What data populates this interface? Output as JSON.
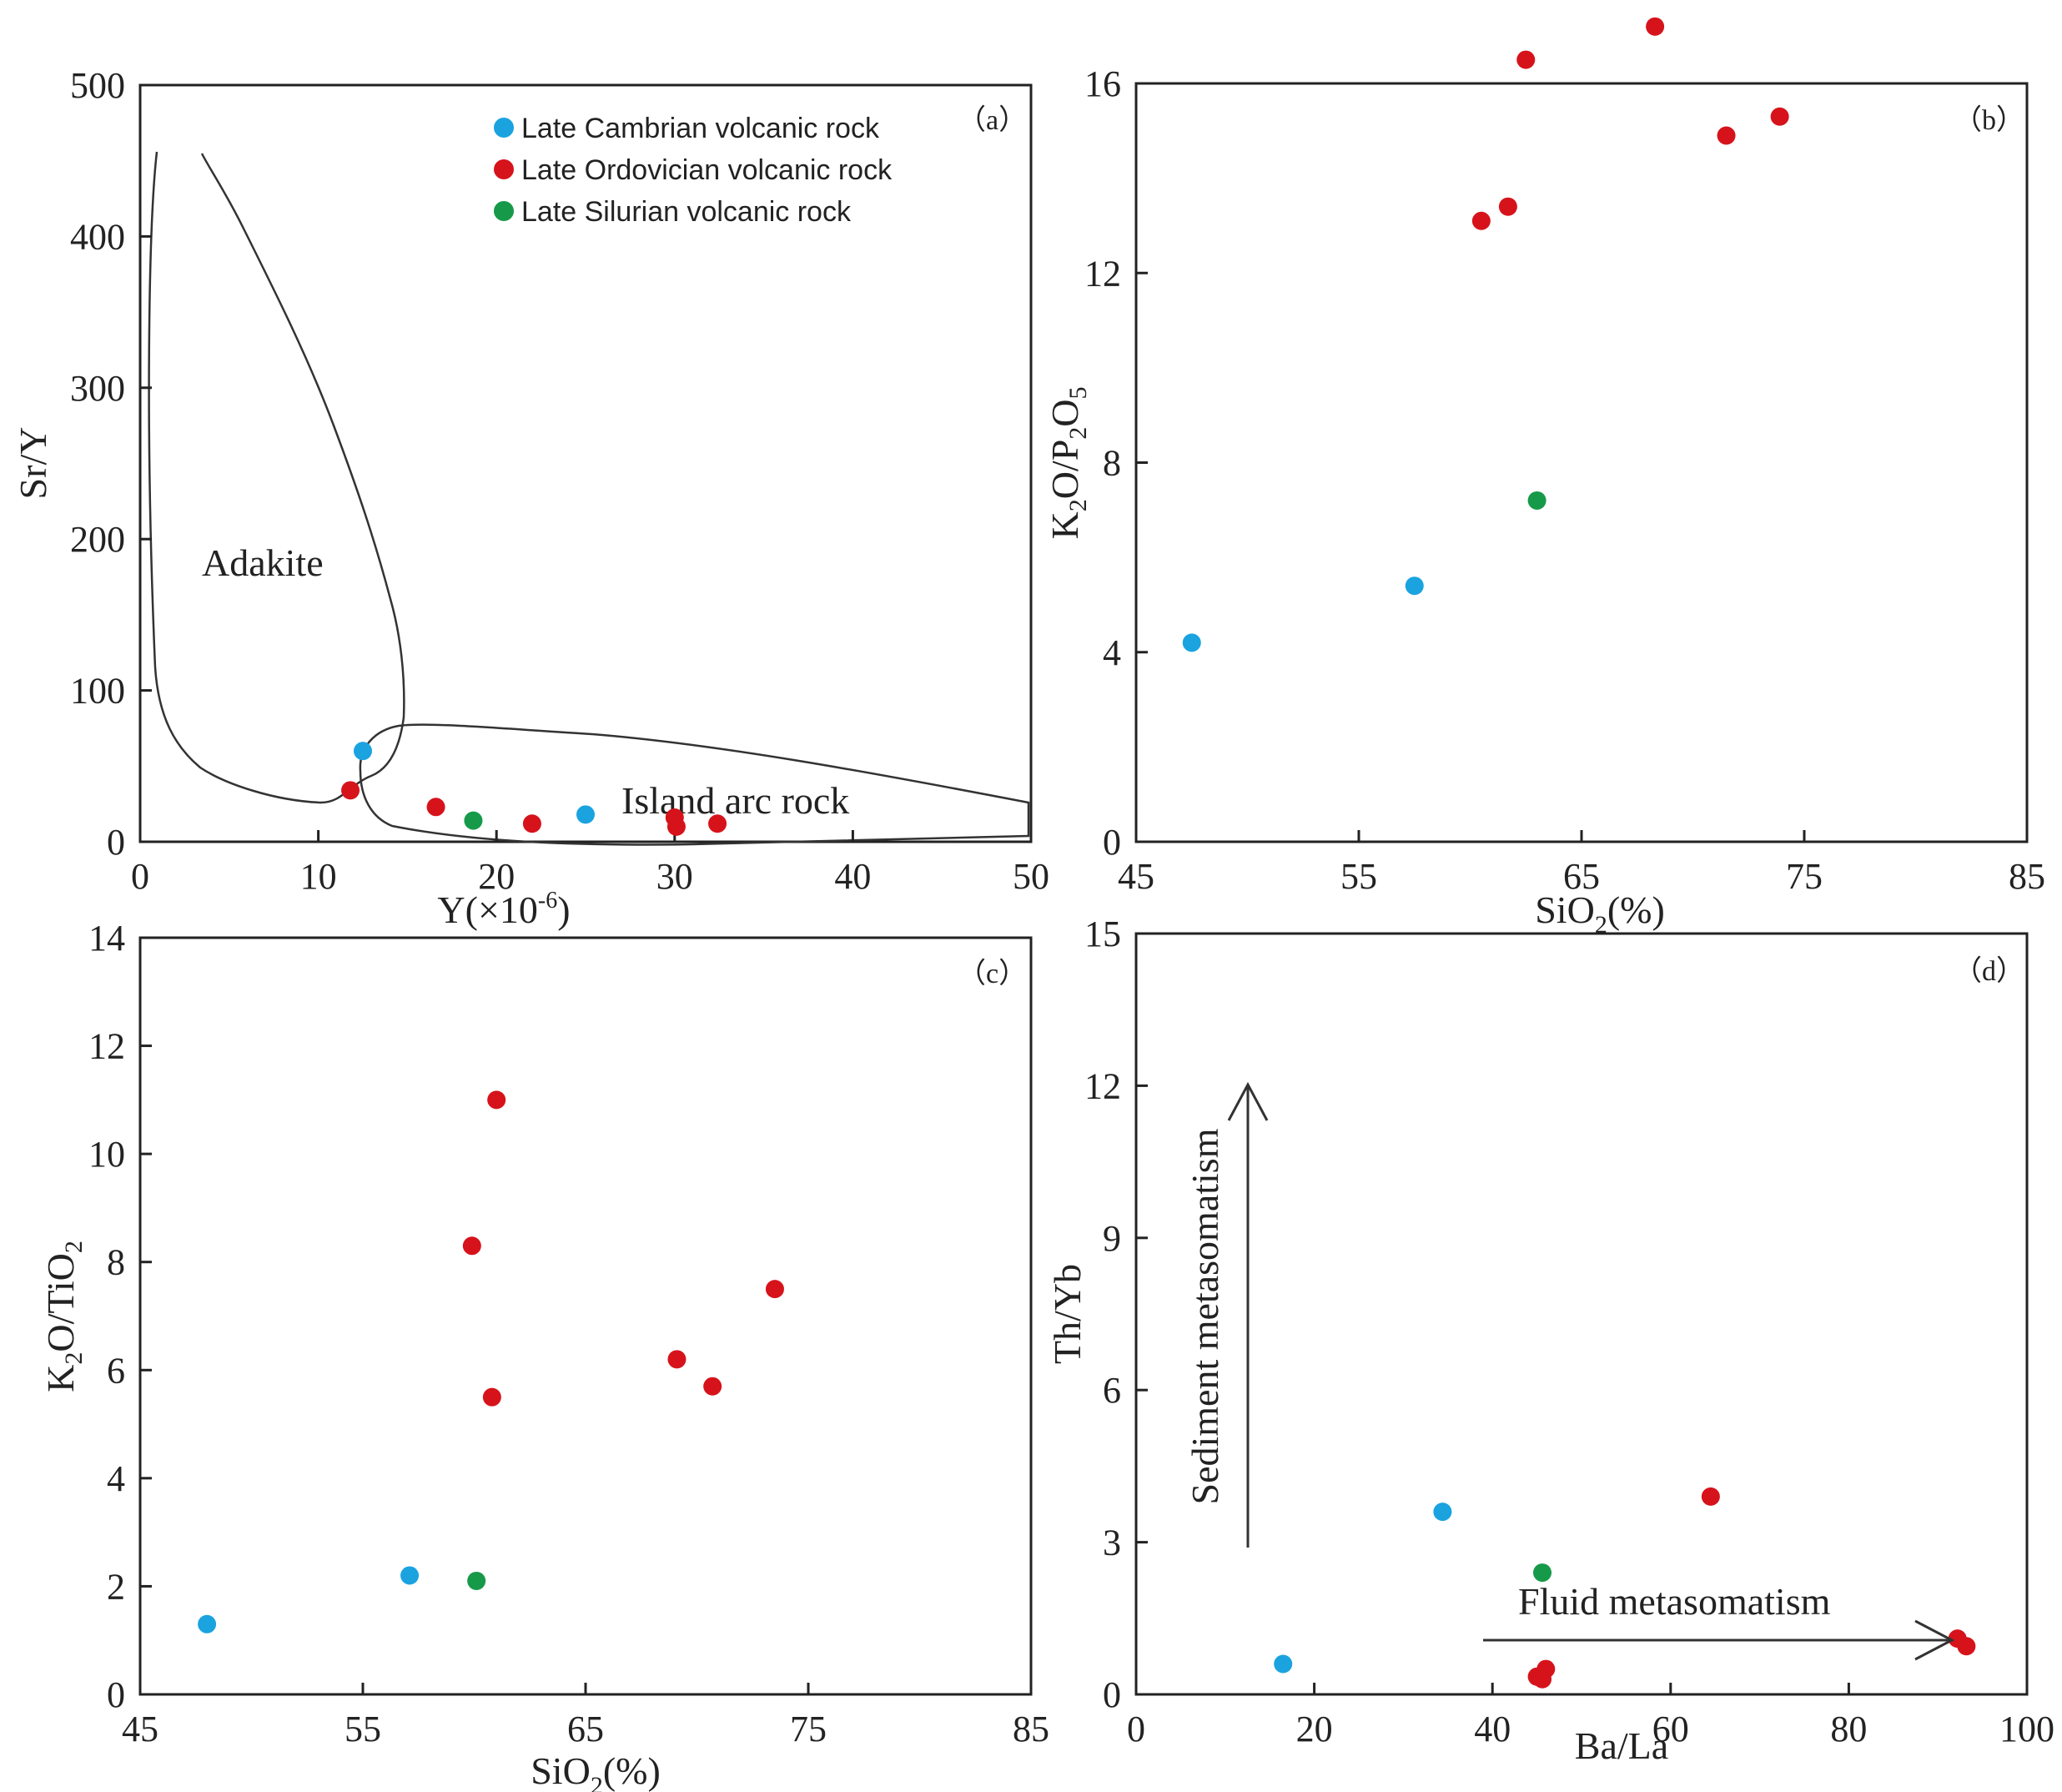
{
  "colors": {
    "cambrian": "#1aa3df",
    "ordovician": "#d6131b",
    "silurian": "#169a49"
  },
  "legend": [
    {
      "key": "cambrian",
      "label": "Late Cambrian volcanic rock"
    },
    {
      "key": "ordovician",
      "label": "Late Ordovician volcanic rock"
    },
    {
      "key": "silurian",
      "label": "Late Silurian volcanic rock"
    }
  ],
  "chart_data": [
    {
      "id": "a",
      "panel_label": "（a）",
      "type": "scatter",
      "xlabel": "Y(×10",
      "xlabel_sup": "-6",
      "xlabel_suffix": ")",
      "ylabel": "Sr/Y",
      "xlim": [
        0,
        50
      ],
      "ylim": [
        0,
        500
      ],
      "xticks": [
        0,
        10,
        20,
        30,
        40,
        50
      ],
      "yticks": [
        0,
        100,
        200,
        300,
        400,
        500
      ],
      "regions": [
        {
          "name": "Adakite",
          "label": "Adakite"
        },
        {
          "name": "Island arc rock",
          "label": "Island arc rock"
        }
      ],
      "series": [
        {
          "key": "cambrian",
          "x": [
            12.5,
            25
          ],
          "y": [
            60,
            18
          ]
        },
        {
          "key": "ordovician",
          "x": [
            11.8,
            16.6,
            22,
            30,
            30.1,
            32.4
          ],
          "y": [
            34,
            23,
            12,
            16,
            10,
            12
          ]
        },
        {
          "key": "silurian",
          "x": [
            18.7
          ],
          "y": [
            14
          ]
        }
      ]
    },
    {
      "id": "b",
      "panel_label": "（b）",
      "type": "scatter",
      "xlabel": "SiO",
      "xlabel_sub": "2",
      "xlabel_suffix": "(%)",
      "ylabel": "K2O/P2O5",
      "xlim": [
        45,
        85
      ],
      "ylim": [
        0,
        16
      ],
      "xticks": [
        45,
        55,
        65,
        75,
        85
      ],
      "yticks": [
        0,
        4,
        8,
        12,
        16
      ],
      "series": [
        {
          "key": "cambrian",
          "x": [
            47.5,
            57.5
          ],
          "y": [
            4.2,
            5.4
          ]
        },
        {
          "key": "ordovician",
          "x": [
            60.5,
            61.7,
            62.5,
            68.3,
            71.5,
            73.9
          ],
          "y": [
            13.1,
            13.4,
            16.5,
            17.2,
            14.9,
            15.3
          ]
        },
        {
          "key": "silurian",
          "x": [
            63
          ],
          "y": [
            7.2
          ]
        }
      ]
    },
    {
      "id": "c",
      "panel_label": "（c）",
      "type": "scatter",
      "xlabel": "SiO",
      "xlabel_sub": "2",
      "xlabel_suffix": "(%)",
      "ylabel": "K2O/TiO2",
      "xlim": [
        45,
        85
      ],
      "ylim": [
        0,
        14
      ],
      "xticks": [
        45,
        55,
        65,
        75,
        85
      ],
      "yticks": [
        0,
        2,
        4,
        6,
        8,
        10,
        12,
        14
      ],
      "series": [
        {
          "key": "cambrian",
          "x": [
            48,
            57.1
          ],
          "y": [
            1.3,
            2.2
          ]
        },
        {
          "key": "ordovician",
          "x": [
            59.9,
            60.8,
            61,
            69.1,
            70.7,
            73.5
          ],
          "y": [
            8.3,
            5.5,
            11,
            6.2,
            5.7,
            7.5
          ]
        },
        {
          "key": "silurian",
          "x": [
            60.1
          ],
          "y": [
            2.1
          ]
        }
      ]
    },
    {
      "id": "d",
      "panel_label": "（d）",
      "type": "scatter",
      "xlabel": "Ba/La",
      "ylabel": "Th/Yb",
      "xlim": [
        0,
        100
      ],
      "ylim": [
        0,
        15
      ],
      "xticks": [
        0,
        20,
        40,
        60,
        80,
        100
      ],
      "yticks": [
        0,
        3,
        6,
        9,
        12,
        15
      ],
      "annotations": {
        "vertical": "Sediment metasomatism",
        "horizontal": "Fluid metasomatism"
      },
      "series": [
        {
          "key": "cambrian",
          "x": [
            16.5,
            34.4
          ],
          "y": [
            0.6,
            3.6
          ]
        },
        {
          "key": "ordovician",
          "x": [
            45,
            45.6,
            46,
            64.5,
            92.2,
            93.2
          ],
          "y": [
            0.35,
            0.3,
            0.5,
            3.9,
            1.1,
            0.95
          ]
        },
        {
          "key": "silurian",
          "x": [
            45.6
          ],
          "y": [
            2.4
          ]
        }
      ]
    }
  ]
}
